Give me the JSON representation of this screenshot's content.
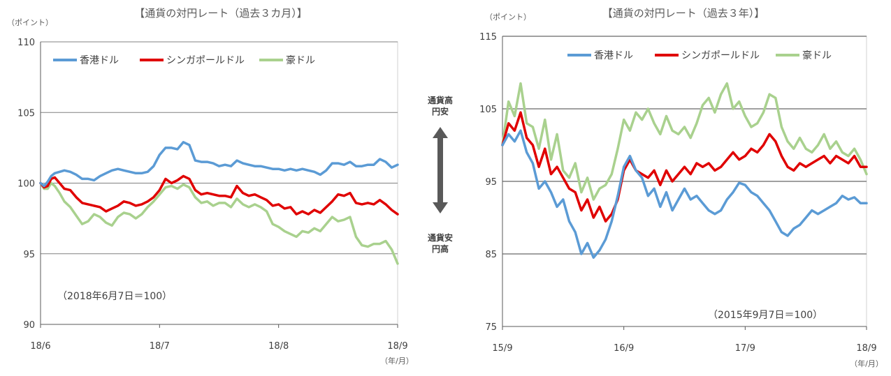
{
  "middle": {
    "top_label": [
      "通貨高",
      "円安"
    ],
    "bottom_label": [
      "通貨安",
      "円高"
    ]
  },
  "chart_data": [
    {
      "type": "line",
      "title": "【通貨の対円レート（過去３カ月）】",
      "unit_label": "（ポイント）",
      "x_unit_label": "（年/月）",
      "base_note": "（2018年6月7日＝100）",
      "x_ticks": [
        "18/6",
        "18/7",
        "18/8",
        "18/9"
      ],
      "x_range": [
        0,
        3
      ],
      "y_ticks": [
        90,
        95,
        100,
        105,
        110
      ],
      "ylim": [
        90,
        110
      ],
      "grid": "horizontal",
      "legend_position": "top-left",
      "series": [
        {
          "name": "香港ドル",
          "color": "#5B9BD5",
          "x": [
            0,
            0.03,
            0.06,
            0.09,
            0.12,
            0.16,
            0.2,
            0.25,
            0.3,
            0.35,
            0.4,
            0.45,
            0.5,
            0.55,
            0.6,
            0.65,
            0.7,
            0.75,
            0.8,
            0.85,
            0.9,
            0.95,
            1.0,
            1.05,
            1.1,
            1.15,
            1.2,
            1.25,
            1.3,
            1.35,
            1.4,
            1.45,
            1.5,
            1.55,
            1.6,
            1.65,
            1.7,
            1.75,
            1.8,
            1.85,
            1.9,
            1.95,
            2.0,
            2.05,
            2.1,
            2.15,
            2.2,
            2.25,
            2.3,
            2.35,
            2.4,
            2.45,
            2.5,
            2.55,
            2.6,
            2.65,
            2.7,
            2.75,
            2.8,
            2.85,
            2.9,
            2.95,
            3.0
          ],
          "values": [
            100.0,
            99.8,
            100.1,
            100.5,
            100.7,
            100.8,
            100.9,
            100.8,
            100.6,
            100.3,
            100.3,
            100.2,
            100.5,
            100.7,
            100.9,
            101.0,
            100.9,
            100.8,
            100.7,
            100.7,
            100.8,
            101.2,
            102.0,
            102.5,
            102.5,
            102.4,
            102.9,
            102.7,
            101.6,
            101.5,
            101.5,
            101.4,
            101.2,
            101.3,
            101.2,
            101.6,
            101.4,
            101.3,
            101.2,
            101.2,
            101.1,
            101.0,
            101.0,
            100.9,
            101.0,
            100.9,
            101.0,
            100.9,
            100.8,
            100.6,
            100.9,
            101.4,
            101.4,
            101.3,
            101.5,
            101.2,
            101.2,
            101.3,
            101.3,
            101.7,
            101.5,
            101.1,
            101.3
          ]
        },
        {
          "name": "シンガポールドル",
          "color": "#E00000",
          "x": [
            0,
            0.03,
            0.06,
            0.09,
            0.12,
            0.16,
            0.2,
            0.25,
            0.3,
            0.35,
            0.4,
            0.45,
            0.5,
            0.55,
            0.6,
            0.65,
            0.7,
            0.75,
            0.8,
            0.85,
            0.9,
            0.95,
            1.0,
            1.05,
            1.1,
            1.15,
            1.2,
            1.25,
            1.3,
            1.35,
            1.4,
            1.45,
            1.5,
            1.55,
            1.6,
            1.65,
            1.7,
            1.75,
            1.8,
            1.85,
            1.9,
            1.95,
            2.0,
            2.05,
            2.1,
            2.15,
            2.2,
            2.25,
            2.3,
            2.35,
            2.4,
            2.45,
            2.5,
            2.55,
            2.6,
            2.65,
            2.7,
            2.75,
            2.8,
            2.85,
            2.9,
            2.95,
            3.0
          ],
          "values": [
            100.0,
            99.7,
            99.8,
            100.3,
            100.4,
            100.0,
            99.6,
            99.5,
            99.0,
            98.6,
            98.5,
            98.4,
            98.3,
            98.0,
            98.2,
            98.4,
            98.7,
            98.6,
            98.4,
            98.5,
            98.7,
            99.0,
            99.5,
            100.3,
            100.0,
            100.2,
            100.5,
            100.3,
            99.5,
            99.2,
            99.3,
            99.2,
            99.1,
            99.1,
            99.0,
            99.8,
            99.3,
            99.1,
            99.2,
            99.0,
            98.8,
            98.4,
            98.5,
            98.2,
            98.3,
            97.8,
            98.0,
            97.8,
            98.1,
            97.9,
            98.3,
            98.7,
            99.2,
            99.1,
            99.3,
            98.6,
            98.5,
            98.6,
            98.5,
            98.8,
            98.5,
            98.1,
            97.8
          ]
        },
        {
          "name": "豪ドル",
          "color": "#A9D18E",
          "x": [
            0,
            0.03,
            0.06,
            0.09,
            0.12,
            0.16,
            0.2,
            0.25,
            0.3,
            0.35,
            0.4,
            0.45,
            0.5,
            0.55,
            0.6,
            0.65,
            0.7,
            0.75,
            0.8,
            0.85,
            0.9,
            0.95,
            1.0,
            1.05,
            1.1,
            1.15,
            1.2,
            1.25,
            1.3,
            1.35,
            1.4,
            1.45,
            1.5,
            1.55,
            1.6,
            1.65,
            1.7,
            1.75,
            1.8,
            1.85,
            1.9,
            1.95,
            2.0,
            2.05,
            2.1,
            2.15,
            2.2,
            2.25,
            2.3,
            2.35,
            2.4,
            2.45,
            2.5,
            2.55,
            2.6,
            2.65,
            2.7,
            2.75,
            2.8,
            2.85,
            2.9,
            2.95,
            3.0
          ],
          "values": [
            100.0,
            99.6,
            99.6,
            100.0,
            99.8,
            99.3,
            98.7,
            98.3,
            97.7,
            97.1,
            97.3,
            97.8,
            97.6,
            97.2,
            97.0,
            97.6,
            97.9,
            97.8,
            97.5,
            97.8,
            98.3,
            98.7,
            99.2,
            99.7,
            99.8,
            99.6,
            99.9,
            99.7,
            99.0,
            98.6,
            98.7,
            98.4,
            98.6,
            98.6,
            98.3,
            98.9,
            98.5,
            98.3,
            98.5,
            98.3,
            98.0,
            97.1,
            96.9,
            96.6,
            96.4,
            96.2,
            96.6,
            96.5,
            96.8,
            96.6,
            97.1,
            97.6,
            97.3,
            97.4,
            97.6,
            96.2,
            95.6,
            95.5,
            95.7,
            95.7,
            95.9,
            95.3,
            94.3
          ]
        }
      ]
    },
    {
      "type": "line",
      "title": "【通貨の対円レート（過去３年）】",
      "unit_label": "（ポイント）",
      "x_unit_label": "（年/月）",
      "base_note": "（2015年9月7日＝100）",
      "x_ticks": [
        "15/9",
        "16/9",
        "17/9",
        "18/9"
      ],
      "x_range": [
        0,
        3
      ],
      "y_ticks": [
        75,
        85,
        95,
        105,
        115
      ],
      "ylim": [
        75,
        115
      ],
      "grid": "horizontal",
      "legend_position": "top-center",
      "series": [
        {
          "name": "香港ドル",
          "color": "#5B9BD5",
          "x": [
            0,
            0.05,
            0.1,
            0.15,
            0.2,
            0.25,
            0.3,
            0.35,
            0.4,
            0.45,
            0.5,
            0.55,
            0.6,
            0.65,
            0.7,
            0.75,
            0.8,
            0.85,
            0.9,
            0.95,
            1.0,
            1.05,
            1.1,
            1.15,
            1.2,
            1.25,
            1.3,
            1.35,
            1.4,
            1.45,
            1.5,
            1.55,
            1.6,
            1.65,
            1.7,
            1.75,
            1.8,
            1.85,
            1.9,
            1.95,
            2.0,
            2.05,
            2.1,
            2.15,
            2.2,
            2.25,
            2.3,
            2.35,
            2.4,
            2.45,
            2.5,
            2.55,
            2.6,
            2.65,
            2.7,
            2.75,
            2.8,
            2.85,
            2.9,
            2.95,
            3.0
          ],
          "values": [
            100.0,
            101.5,
            100.5,
            102.0,
            99.0,
            97.5,
            94.0,
            95.0,
            93.5,
            91.5,
            92.5,
            89.5,
            88.0,
            85.0,
            86.5,
            84.5,
            85.5,
            87.0,
            89.5,
            93.0,
            97.0,
            98.5,
            96.5,
            95.5,
            93.0,
            94.0,
            91.5,
            93.5,
            91.0,
            92.5,
            94.0,
            92.5,
            93.0,
            92.0,
            91.0,
            90.5,
            91.0,
            92.5,
            93.5,
            94.8,
            94.5,
            93.5,
            93.0,
            92.0,
            91.0,
            89.5,
            88.0,
            87.5,
            88.5,
            89.0,
            90.0,
            91.0,
            90.5,
            91.0,
            91.5,
            92.0,
            93.0,
            92.5,
            92.8,
            92.0,
            92.0
          ]
        },
        {
          "name": "シンガポールドル",
          "color": "#E00000",
          "x": [
            0,
            0.05,
            0.1,
            0.15,
            0.2,
            0.25,
            0.3,
            0.35,
            0.4,
            0.45,
            0.5,
            0.55,
            0.6,
            0.65,
            0.7,
            0.75,
            0.8,
            0.85,
            0.9,
            0.95,
            1.0,
            1.05,
            1.1,
            1.15,
            1.2,
            1.25,
            1.3,
            1.35,
            1.4,
            1.45,
            1.5,
            1.55,
            1.6,
            1.65,
            1.7,
            1.75,
            1.8,
            1.85,
            1.9,
            1.95,
            2.0,
            2.05,
            2.1,
            2.15,
            2.2,
            2.25,
            2.3,
            2.35,
            2.4,
            2.45,
            2.5,
            2.55,
            2.6,
            2.65,
            2.7,
            2.75,
            2.8,
            2.85,
            2.9,
            2.95,
            3.0
          ],
          "values": [
            100.0,
            103.0,
            102.0,
            104.5,
            101.0,
            100.0,
            97.0,
            99.5,
            96.0,
            97.0,
            95.5,
            94.0,
            93.5,
            91.0,
            92.5,
            90.0,
            91.5,
            89.5,
            90.5,
            92.5,
            96.5,
            98.0,
            96.5,
            96.0,
            95.5,
            96.5,
            94.5,
            96.5,
            95.0,
            96.0,
            97.0,
            96.0,
            97.5,
            97.0,
            97.5,
            96.5,
            97.0,
            98.0,
            99.0,
            98.0,
            98.5,
            99.5,
            99.0,
            100.0,
            101.5,
            100.5,
            98.5,
            97.0,
            96.5,
            97.5,
            97.0,
            97.5,
            98.0,
            98.5,
            97.5,
            98.5,
            98.0,
            97.5,
            98.5,
            97.0,
            97.0
          ]
        },
        {
          "name": "豪ドル",
          "color": "#A9D18E",
          "x": [
            0,
            0.05,
            0.1,
            0.15,
            0.2,
            0.25,
            0.3,
            0.35,
            0.4,
            0.45,
            0.5,
            0.55,
            0.6,
            0.65,
            0.7,
            0.75,
            0.8,
            0.85,
            0.9,
            0.95,
            1.0,
            1.05,
            1.1,
            1.15,
            1.2,
            1.25,
            1.3,
            1.35,
            1.4,
            1.45,
            1.5,
            1.55,
            1.6,
            1.65,
            1.7,
            1.75,
            1.8,
            1.85,
            1.9,
            1.95,
            2.0,
            2.05,
            2.1,
            2.15,
            2.2,
            2.25,
            2.3,
            2.35,
            2.4,
            2.45,
            2.5,
            2.55,
            2.6,
            2.65,
            2.7,
            2.75,
            2.8,
            2.85,
            2.9,
            2.95,
            3.0
          ],
          "values": [
            100.0,
            106.0,
            104.0,
            108.5,
            103.0,
            102.5,
            99.5,
            103.5,
            98.0,
            101.5,
            96.5,
            95.5,
            97.5,
            93.5,
            95.5,
            92.5,
            94.0,
            94.5,
            96.0,
            99.5,
            103.5,
            102.0,
            104.5,
            103.5,
            105.0,
            103.0,
            101.5,
            104.0,
            102.0,
            101.5,
            102.5,
            101.0,
            103.0,
            105.5,
            106.5,
            104.5,
            107.0,
            108.5,
            105.0,
            106.0,
            104.0,
            102.5,
            103.0,
            104.5,
            107.0,
            106.5,
            102.5,
            100.5,
            99.5,
            101.0,
            99.5,
            99.0,
            100.0,
            101.5,
            99.5,
            100.5,
            99.0,
            98.5,
            99.5,
            98.0,
            96.0
          ]
        }
      ]
    }
  ]
}
